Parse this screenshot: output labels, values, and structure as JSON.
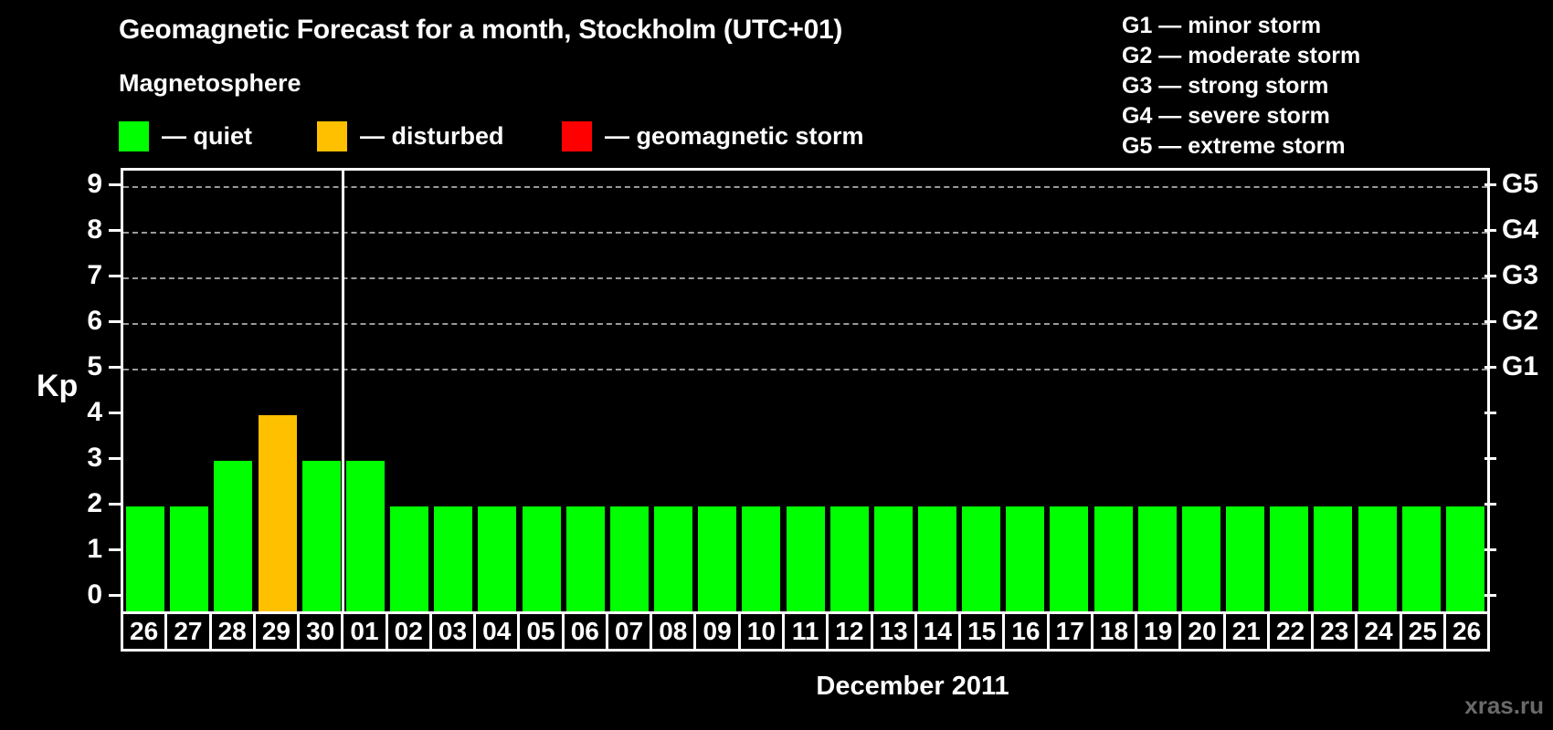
{
  "header": {
    "title": "Geomagnetic Forecast for a month, Stockholm (UTC+01)",
    "subtitle": "Magnetosphere",
    "legend": [
      {
        "name": "quiet",
        "label": "— quiet",
        "color": "#00FF00"
      },
      {
        "name": "disturbed",
        "label": "— disturbed",
        "color": "#FFC000"
      },
      {
        "name": "geomagnetic-storm",
        "label": "— geomagnetic storm",
        "color": "#FF0000"
      }
    ],
    "g_scale_legend": [
      "G1 — minor storm",
      "G2 — moderate storm",
      "G3 — strong storm",
      "G4 — severe storm",
      "G5 — extreme storm"
    ]
  },
  "chart_data": {
    "type": "bar",
    "title": "Geomagnetic Forecast for a month, Stockholm (UTC+01)",
    "xlabel": "December 2011",
    "ylabel": "Kp",
    "ylim": [
      0,
      9
    ],
    "yticks": [
      0,
      1,
      2,
      3,
      4,
      5,
      6,
      7,
      8,
      9
    ],
    "gridline_kps": [
      5,
      6,
      7,
      8,
      9
    ],
    "grid": "horizontal dashed at storm levels only",
    "right_axis": {
      "5": "G1",
      "6": "G2",
      "7": "G3",
      "8": "G4",
      "9": "G5"
    },
    "categories": [
      "26",
      "27",
      "28",
      "29",
      "30",
      "01",
      "02",
      "03",
      "04",
      "05",
      "06",
      "07",
      "08",
      "09",
      "10",
      "11",
      "12",
      "13",
      "14",
      "15",
      "16",
      "17",
      "18",
      "19",
      "20",
      "21",
      "22",
      "23",
      "24",
      "25",
      "26"
    ],
    "values": [
      2,
      2,
      3,
      4,
      3,
      3,
      2,
      2,
      2,
      2,
      2,
      2,
      2,
      2,
      2,
      2,
      2,
      2,
      2,
      2,
      2,
      2,
      2,
      2,
      2,
      2,
      2,
      2,
      2,
      2,
      2
    ],
    "statuses": [
      "quiet",
      "quiet",
      "quiet",
      "disturbed",
      "quiet",
      "quiet",
      "quiet",
      "quiet",
      "quiet",
      "quiet",
      "quiet",
      "quiet",
      "quiet",
      "quiet",
      "quiet",
      "quiet",
      "quiet",
      "quiet",
      "quiet",
      "quiet",
      "quiet",
      "quiet",
      "quiet",
      "quiet",
      "quiet",
      "quiet",
      "quiet",
      "quiet",
      "quiet",
      "quiet",
      "quiet"
    ],
    "status_colors": {
      "quiet": "#00FF00",
      "disturbed": "#FFC000",
      "storm": "#FF0000"
    },
    "separator_after_index": 4,
    "legend_position": "top-left"
  },
  "axis": {
    "kp_label": "Kp",
    "month_label": "December 2011"
  },
  "watermark": "xras.ru",
  "colors": {
    "background": "#000000",
    "foreground": "#FFFFFF",
    "gridline": "#9A9A9A",
    "watermark": "#6A6A6A"
  }
}
